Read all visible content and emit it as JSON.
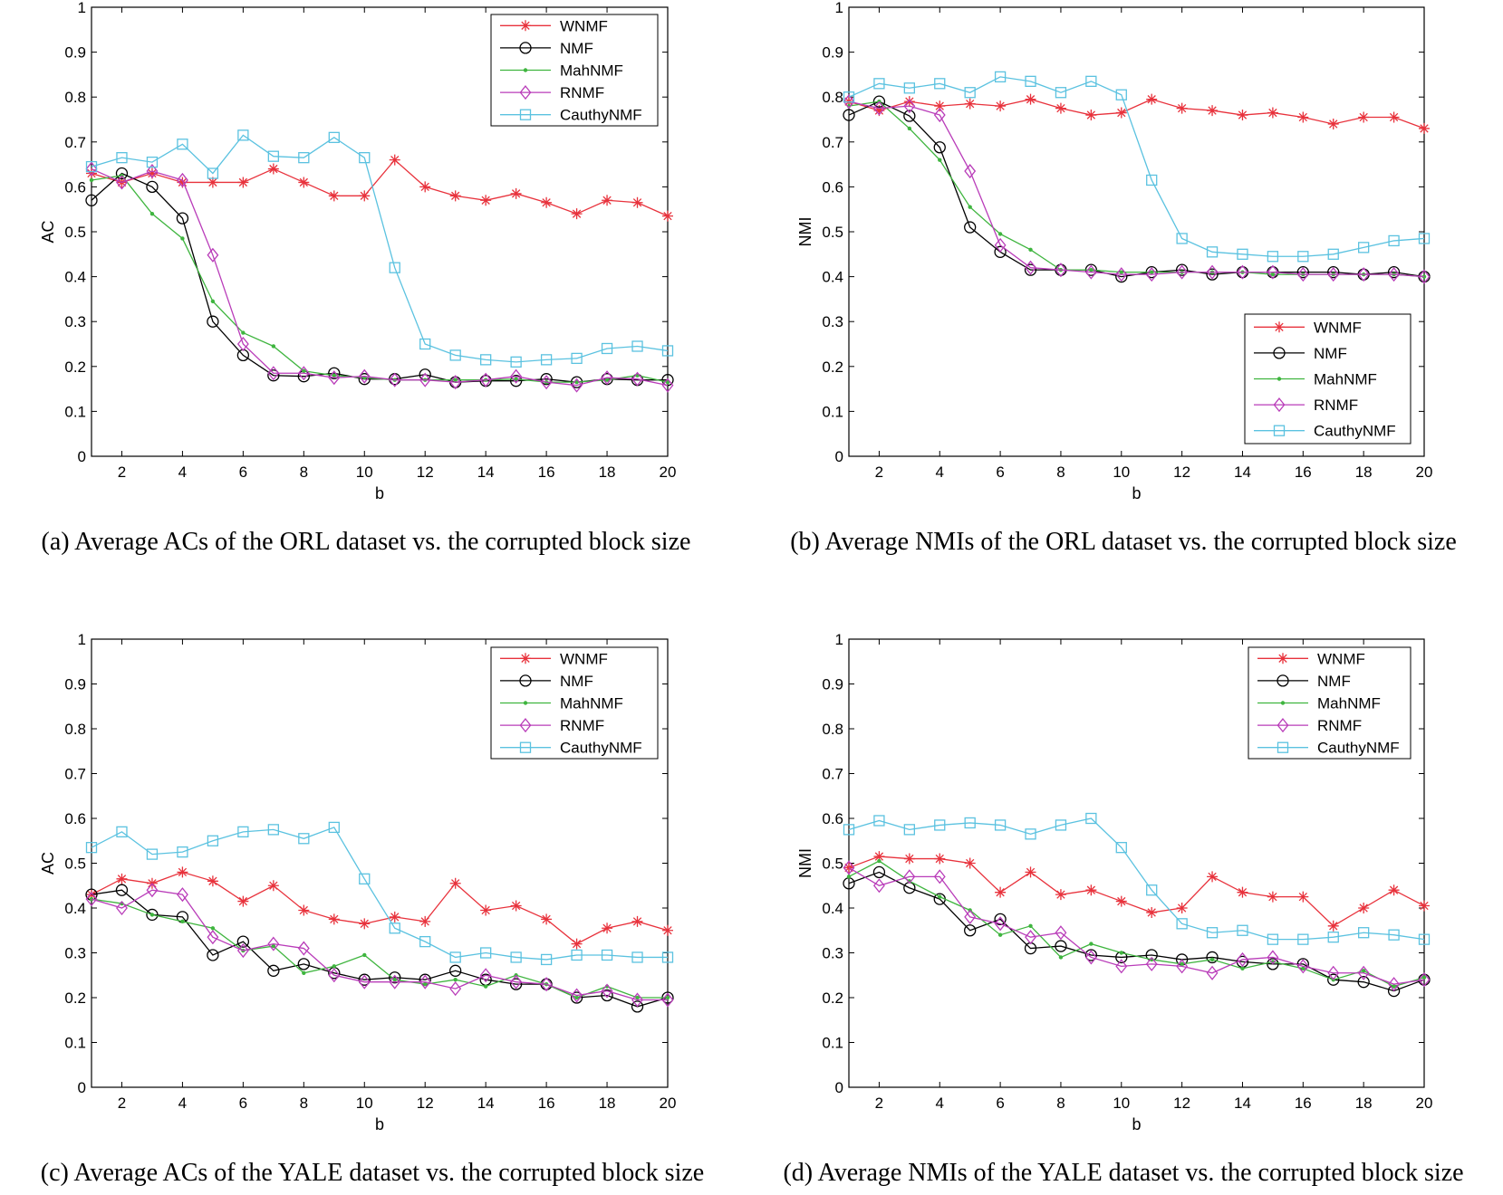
{
  "chart_data": [
    {
      "type": "line",
      "caption": "(a)  Average ACs of the ORL dataset vs. the corrupted block size",
      "xlabel": "b",
      "ylabel": "AC",
      "xlim": [
        1,
        20
      ],
      "ylim": [
        0,
        1
      ],
      "xticks": [
        2,
        4,
        6,
        8,
        10,
        12,
        14,
        16,
        18,
        20
      ],
      "yticks": [
        0,
        0.1,
        0.2,
        0.3,
        0.4,
        0.5,
        0.6,
        0.7,
        0.8,
        0.9,
        1
      ],
      "grid": false,
      "legend": "top-right",
      "x": [
        1,
        2,
        3,
        4,
        5,
        6,
        7,
        8,
        9,
        10,
        11,
        12,
        13,
        14,
        15,
        16,
        17,
        18,
        19,
        20
      ],
      "series": [
        {
          "name": "WNMF",
          "color": "#e8323c",
          "marker": "star",
          "values": [
            0.63,
            0.61,
            0.63,
            0.61,
            0.61,
            0.61,
            0.64,
            0.61,
            0.58,
            0.58,
            0.66,
            0.6,
            0.58,
            0.57,
            0.585,
            0.565,
            0.54,
            0.57,
            0.565,
            0.535
          ]
        },
        {
          "name": "NMF",
          "color": "#000000",
          "marker": "circle",
          "values": [
            0.57,
            0.63,
            0.6,
            0.53,
            0.3,
            0.225,
            0.18,
            0.178,
            0.185,
            0.172,
            0.172,
            0.182,
            0.165,
            0.168,
            0.168,
            0.172,
            0.165,
            0.172,
            0.17,
            0.17
          ]
        },
        {
          "name": "MahNMF",
          "color": "#3fb53f",
          "marker": "dot",
          "values": [
            0.615,
            0.625,
            0.54,
            0.485,
            0.345,
            0.275,
            0.245,
            0.19,
            0.18,
            0.175,
            0.17,
            0.17,
            0.17,
            0.17,
            0.172,
            0.165,
            0.165,
            0.17,
            0.18,
            0.165
          ]
        },
        {
          "name": "RNMF",
          "color": "#b93cb9",
          "marker": "diamond",
          "values": [
            0.64,
            0.61,
            0.635,
            0.615,
            0.448,
            0.25,
            0.185,
            0.185,
            0.175,
            0.178,
            0.17,
            0.17,
            0.165,
            0.17,
            0.178,
            0.165,
            0.158,
            0.175,
            0.172,
            0.158
          ]
        },
        {
          "name": "CauthyNMF",
          "color": "#5bc2e0",
          "marker": "square",
          "values": [
            0.645,
            0.665,
            0.655,
            0.695,
            0.63,
            0.715,
            0.668,
            0.665,
            0.71,
            0.665,
            0.42,
            0.25,
            0.225,
            0.215,
            0.21,
            0.215,
            0.218,
            0.24,
            0.245,
            0.235
          ]
        }
      ]
    },
    {
      "type": "line",
      "caption": "(b)  Average NMIs of the ORL dataset vs. the corrupted block size",
      "xlabel": "b",
      "ylabel": "NMI",
      "xlim": [
        1,
        20
      ],
      "ylim": [
        0,
        1
      ],
      "xticks": [
        2,
        4,
        6,
        8,
        10,
        12,
        14,
        16,
        18,
        20
      ],
      "yticks": [
        0,
        0.1,
        0.2,
        0.3,
        0.4,
        0.5,
        0.6,
        0.7,
        0.8,
        0.9,
        1
      ],
      "grid": false,
      "legend": "bottom-right",
      "x": [
        1,
        2,
        3,
        4,
        5,
        6,
        7,
        8,
        9,
        10,
        11,
        12,
        13,
        14,
        15,
        16,
        17,
        18,
        19,
        20
      ],
      "series": [
        {
          "name": "WNMF",
          "color": "#e8323c",
          "marker": "star",
          "values": [
            0.79,
            0.77,
            0.79,
            0.78,
            0.785,
            0.78,
            0.795,
            0.775,
            0.76,
            0.765,
            0.795,
            0.775,
            0.77,
            0.76,
            0.765,
            0.755,
            0.74,
            0.755,
            0.755,
            0.73
          ]
        },
        {
          "name": "NMF",
          "color": "#000000",
          "marker": "circle",
          "values": [
            0.76,
            0.79,
            0.758,
            0.688,
            0.51,
            0.455,
            0.415,
            0.415,
            0.415,
            0.4,
            0.41,
            0.415,
            0.405,
            0.41,
            0.41,
            0.41,
            0.41,
            0.405,
            0.41,
            0.4
          ]
        },
        {
          "name": "MahNMF",
          "color": "#3fb53f",
          "marker": "dot",
          "values": [
            0.78,
            0.79,
            0.73,
            0.66,
            0.555,
            0.495,
            0.46,
            0.415,
            0.415,
            0.41,
            0.41,
            0.41,
            0.41,
            0.41,
            0.405,
            0.405,
            0.405,
            0.405,
            0.405,
            0.4
          ]
        },
        {
          "name": "RNMF",
          "color": "#b93cb9",
          "marker": "diamond",
          "values": [
            0.79,
            0.775,
            0.78,
            0.76,
            0.635,
            0.47,
            0.42,
            0.415,
            0.41,
            0.405,
            0.405,
            0.41,
            0.41,
            0.41,
            0.41,
            0.405,
            0.405,
            0.405,
            0.405,
            0.4
          ]
        },
        {
          "name": "CauthyNMF",
          "color": "#5bc2e0",
          "marker": "square",
          "values": [
            0.8,
            0.83,
            0.82,
            0.83,
            0.81,
            0.845,
            0.835,
            0.81,
            0.835,
            0.805,
            0.615,
            0.485,
            0.455,
            0.45,
            0.445,
            0.445,
            0.45,
            0.465,
            0.48,
            0.485
          ]
        }
      ]
    },
    {
      "type": "line",
      "caption": "(c)  Average ACs of the YALE dataset vs. the corrupted block size",
      "xlabel": "b",
      "ylabel": "AC",
      "xlim": [
        1,
        20
      ],
      "ylim": [
        0,
        1
      ],
      "xticks": [
        2,
        4,
        6,
        8,
        10,
        12,
        14,
        16,
        18,
        20
      ],
      "yticks": [
        0,
        0.1,
        0.2,
        0.3,
        0.4,
        0.5,
        0.6,
        0.7,
        0.8,
        0.9,
        1
      ],
      "grid": false,
      "legend": "top-right",
      "x": [
        1,
        2,
        3,
        4,
        5,
        6,
        7,
        8,
        9,
        10,
        11,
        12,
        13,
        14,
        15,
        16,
        17,
        18,
        19,
        20
      ],
      "series": [
        {
          "name": "WNMF",
          "color": "#e8323c",
          "marker": "star",
          "values": [
            0.43,
            0.465,
            0.455,
            0.48,
            0.46,
            0.415,
            0.45,
            0.395,
            0.375,
            0.365,
            0.38,
            0.37,
            0.455,
            0.395,
            0.405,
            0.375,
            0.32,
            0.355,
            0.37,
            0.35
          ]
        },
        {
          "name": "NMF",
          "color": "#000000",
          "marker": "circle",
          "values": [
            0.43,
            0.44,
            0.385,
            0.38,
            0.295,
            0.325,
            0.26,
            0.275,
            0.255,
            0.24,
            0.245,
            0.24,
            0.26,
            0.24,
            0.23,
            0.23,
            0.2,
            0.205,
            0.18,
            0.2
          ]
        },
        {
          "name": "MahNMF",
          "color": "#3fb53f",
          "marker": "dot",
          "values": [
            0.42,
            0.41,
            0.385,
            0.37,
            0.355,
            0.305,
            0.315,
            0.255,
            0.27,
            0.295,
            0.24,
            0.23,
            0.24,
            0.225,
            0.25,
            0.23,
            0.2,
            0.225,
            0.2,
            0.2
          ]
        },
        {
          "name": "RNMF",
          "color": "#b93cb9",
          "marker": "diamond",
          "values": [
            0.42,
            0.4,
            0.44,
            0.43,
            0.335,
            0.305,
            0.32,
            0.31,
            0.25,
            0.235,
            0.235,
            0.235,
            0.22,
            0.25,
            0.235,
            0.23,
            0.205,
            0.215,
            0.195,
            0.195
          ]
        },
        {
          "name": "CauthyNMF",
          "color": "#5bc2e0",
          "marker": "square",
          "values": [
            0.535,
            0.57,
            0.52,
            0.525,
            0.55,
            0.57,
            0.575,
            0.555,
            0.58,
            0.465,
            0.355,
            0.325,
            0.29,
            0.3,
            0.29,
            0.285,
            0.295,
            0.295,
            0.29,
            0.29
          ]
        }
      ]
    },
    {
      "type": "line",
      "caption": "(d)  Average NMIs of the YALE dataset vs. the corrupted block size",
      "xlabel": "b",
      "ylabel": "NMI",
      "xlim": [
        1,
        20
      ],
      "ylim": [
        0,
        1
      ],
      "xticks": [
        2,
        4,
        6,
        8,
        10,
        12,
        14,
        16,
        18,
        20
      ],
      "yticks": [
        0,
        0.1,
        0.2,
        0.3,
        0.4,
        0.5,
        0.6,
        0.7,
        0.8,
        0.9,
        1
      ],
      "grid": false,
      "legend": "top-right",
      "x": [
        1,
        2,
        3,
        4,
        5,
        6,
        7,
        8,
        9,
        10,
        11,
        12,
        13,
        14,
        15,
        16,
        17,
        18,
        19,
        20
      ],
      "series": [
        {
          "name": "WNMF",
          "color": "#e8323c",
          "marker": "star",
          "values": [
            0.49,
            0.515,
            0.51,
            0.51,
            0.5,
            0.435,
            0.48,
            0.43,
            0.44,
            0.415,
            0.39,
            0.4,
            0.47,
            0.435,
            0.425,
            0.425,
            0.36,
            0.4,
            0.44,
            0.405
          ]
        },
        {
          "name": "NMF",
          "color": "#000000",
          "marker": "circle",
          "values": [
            0.455,
            0.48,
            0.445,
            0.42,
            0.35,
            0.375,
            0.31,
            0.315,
            0.295,
            0.29,
            0.295,
            0.285,
            0.29,
            0.28,
            0.275,
            0.275,
            0.24,
            0.235,
            0.215,
            0.24
          ]
        },
        {
          "name": "MahNMF",
          "color": "#3fb53f",
          "marker": "dot",
          "values": [
            0.47,
            0.505,
            0.46,
            0.425,
            0.395,
            0.34,
            0.36,
            0.29,
            0.32,
            0.3,
            0.285,
            0.275,
            0.285,
            0.265,
            0.28,
            0.265,
            0.24,
            0.26,
            0.225,
            0.245
          ]
        },
        {
          "name": "RNMF",
          "color": "#b93cb9",
          "marker": "diamond",
          "values": [
            0.49,
            0.45,
            0.47,
            0.47,
            0.38,
            0.365,
            0.335,
            0.345,
            0.29,
            0.27,
            0.275,
            0.27,
            0.255,
            0.285,
            0.29,
            0.27,
            0.255,
            0.255,
            0.23,
            0.24
          ]
        },
        {
          "name": "CauthyNMF",
          "color": "#5bc2e0",
          "marker": "square",
          "values": [
            0.575,
            0.595,
            0.575,
            0.585,
            0.59,
            0.585,
            0.565,
            0.585,
            0.6,
            0.535,
            0.44,
            0.365,
            0.345,
            0.35,
            0.33,
            0.33,
            0.335,
            0.345,
            0.34,
            0.33
          ]
        }
      ]
    }
  ]
}
